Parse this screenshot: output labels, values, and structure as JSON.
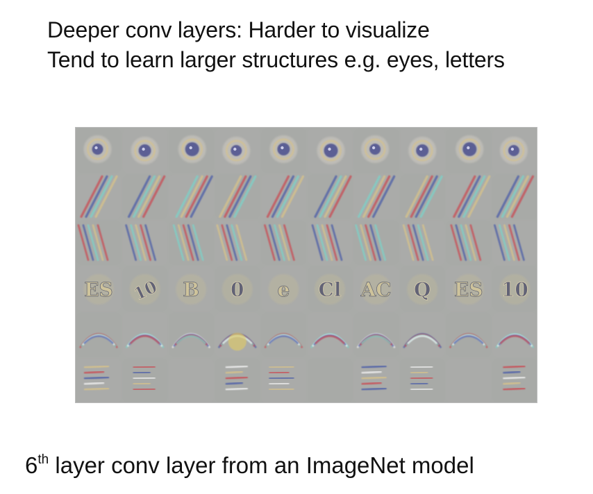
{
  "heading": {
    "line1": "Deeper conv layers: Harder to visualize",
    "line2": "Tend to learn larger structures e.g. eyes, letters"
  },
  "image": {
    "tile_rows": [
      "eye-like blobs",
      "diagonal stroke filters",
      "parallel slanted stroke filters",
      "letter-like patterns",
      "curved arc patterns",
      "vertical bar patterns"
    ],
    "tile_text": [
      "ES",
      "10",
      "B",
      "0",
      "e",
      "Cl",
      "AC",
      "Q"
    ],
    "colors": {
      "background": "#a9aba8",
      "stroke_red": "#c94d55",
      "stroke_blue": "#4d5fa8",
      "stroke_cyan": "#7dd1c8",
      "stroke_yellow": "#d7c28a",
      "eye_core": "#4c4f8f"
    }
  },
  "caption": {
    "superscript_number": "6",
    "superscript": "th",
    "text": " layer conv layer from an ImageNet model"
  }
}
